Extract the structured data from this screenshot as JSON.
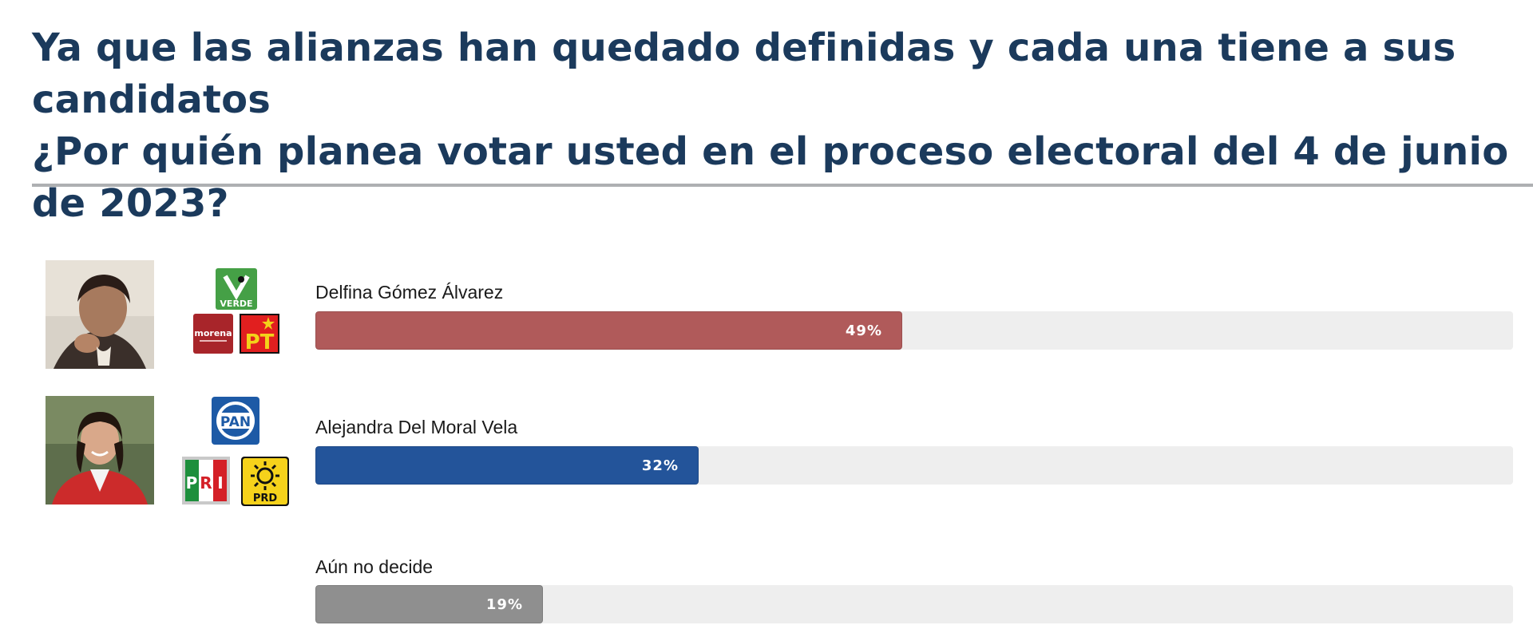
{
  "title": {
    "line1": "Ya que las alianzas han quedado definidas y cada una tiene a sus candidatos",
    "line2": "¿Por quién planea votar usted en el proceso electoral del 4 de junio de 2023?"
  },
  "chart_data": {
    "type": "bar",
    "orientation": "horizontal",
    "title": "Ya que las alianzas han quedado definidas y cada una tiene a sus candidatos ¿Por quién planea votar usted en el proceso electoral del 4 de junio de 2023?",
    "categories": [
      "Delfina Gómez Álvarez",
      "Alejandra Del Moral Vela",
      "Aún no decide"
    ],
    "values": [
      49,
      32,
      19
    ],
    "value_labels": [
      "49%",
      "32%",
      "19%"
    ],
    "unit": "%",
    "xlim": [
      0,
      100
    ],
    "grid": false,
    "colors": [
      "#b05a5a",
      "#23549a",
      "#8f8f8f"
    ],
    "track_color": "#eeeeee"
  },
  "logos": {
    "verde": "VERDE",
    "morena": "morena",
    "pt": "PT",
    "pan": "PAN",
    "pri_p": "P",
    "pri_r": "R",
    "pri_i": "I",
    "prd": "PRD"
  },
  "icons": [
    "candidate-photo-icon",
    "verde-logo-icon",
    "morena-logo-icon",
    "pt-logo-icon",
    "pan-logo-icon",
    "pri-logo-icon",
    "prd-logo-icon"
  ]
}
